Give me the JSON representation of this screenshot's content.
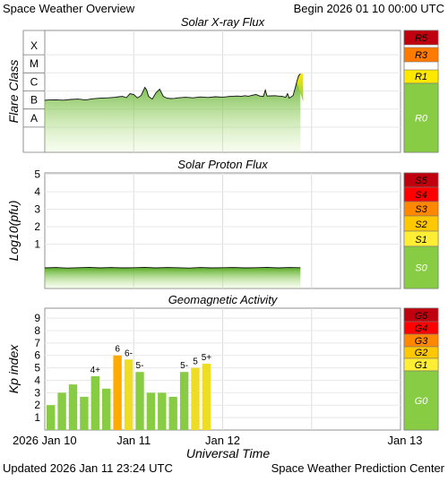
{
  "header": {
    "title": "Space Weather Overview",
    "begin": "Begin 2026 01 10 00:00 UTC"
  },
  "footer": {
    "updated": "Updated 2026 Jan 11 23:24 UTC",
    "source": "Space Weather Prediction Center"
  },
  "chart_data": [
    {
      "type": "area",
      "title": "Solar X-ray Flux",
      "ylabel": "Flare Class",
      "y_ticks": [
        "A",
        "B",
        "C",
        "M",
        "X"
      ],
      "ylim": [
        0,
        5
      ],
      "x_range_hours": [
        0,
        96
      ],
      "x": [
        0,
        1,
        3,
        5,
        7,
        9,
        11,
        13,
        15,
        17,
        19,
        20,
        21,
        22,
        23,
        24,
        25,
        26,
        27,
        27.5,
        28,
        29,
        30,
        31,
        32,
        33,
        34,
        35,
        36,
        38,
        40,
        42,
        44,
        46,
        48,
        50,
        52,
        53,
        54,
        55,
        56,
        57,
        58,
        59,
        59.5,
        60,
        61,
        62,
        63,
        64,
        64.5,
        65,
        65.5,
        66,
        67,
        67.5,
        68,
        68.5,
        69
      ],
      "values": [
        1.98,
        2.0,
        2.01,
        1.99,
        2.03,
        2.05,
        2.0,
        2.07,
        2.1,
        2.12,
        2.15,
        2.18,
        2.2,
        2.13,
        2.35,
        2.3,
        2.12,
        2.25,
        2.7,
        2.55,
        2.2,
        2.05,
        2.4,
        2.6,
        2.2,
        2.1,
        2.08,
        2.09,
        2.12,
        2.15,
        2.12,
        2.17,
        2.14,
        2.18,
        2.16,
        2.2,
        2.22,
        2.2,
        2.24,
        2.21,
        2.26,
        2.3,
        2.22,
        2.2,
        2.55,
        2.22,
        2.23,
        2.24,
        2.22,
        2.21,
        2.18,
        2.15,
        2.35,
        2.1,
        2.25,
        2.6,
        3.0,
        3.35,
        3.45
      ],
      "scale": [
        {
          "label": "R5",
          "color": "#c0000f"
        },
        {
          "label": "R3",
          "color": "#ff7b00"
        },
        {
          "label": "R1",
          "color": "#ffe800"
        },
        {
          "label": "R0",
          "color": "#88cc44"
        }
      ]
    },
    {
      "type": "area",
      "title": "Solar Proton Flux",
      "ylabel": "Log10(pfu)",
      "y_ticks": [
        "1",
        "2",
        "3",
        "4",
        "5"
      ],
      "ylim": [
        -1.1,
        5.6
      ],
      "x_range_hours": [
        0,
        96
      ],
      "x": [
        0,
        3,
        6,
        9,
        12,
        15,
        18,
        21,
        24,
        27,
        30,
        33,
        36,
        39,
        42,
        45,
        48,
        51,
        54,
        57,
        60,
        63,
        66,
        69
      ],
      "values": [
        -0.36,
        -0.34,
        -0.37,
        -0.35,
        -0.33,
        -0.36,
        -0.34,
        -0.36,
        -0.35,
        -0.33,
        -0.36,
        -0.34,
        -0.35,
        -0.37,
        -0.34,
        -0.36,
        -0.35,
        -0.34,
        -0.36,
        -0.35,
        -0.33,
        -0.36,
        -0.34,
        -0.35
      ],
      "scale": [
        {
          "label": "S5",
          "color": "#c0000f"
        },
        {
          "label": "S4",
          "color": "#ff0000"
        },
        {
          "label": "S3",
          "color": "#ff8800"
        },
        {
          "label": "S2",
          "color": "#ffc800"
        },
        {
          "label": "S1",
          "color": "#ffee33"
        },
        {
          "label": "S0",
          "color": "#88cc44"
        }
      ]
    },
    {
      "type": "bar",
      "title": "Geomagnetic Activity",
      "ylabel": "Kp index",
      "y_ticks": [
        "1",
        "2",
        "3",
        "4",
        "5",
        "6",
        "7",
        "8",
        "9"
      ],
      "ylim": [
        0,
        9.8
      ],
      "bar_width_hours": 3,
      "x_start_hours": [
        0,
        3,
        6,
        9,
        12,
        15,
        18,
        21,
        24,
        27,
        30,
        33,
        36,
        39,
        42,
        45
      ],
      "values": [
        2,
        3,
        3.67,
        2.67,
        4.33,
        3.33,
        6,
        5.67,
        4.67,
        3,
        3,
        2.67,
        4.67,
        5,
        5.33,
        0
      ],
      "bar_labels": [
        "",
        "",
        "",
        "",
        "4+",
        "",
        "6",
        "6-",
        "5-",
        "",
        "",
        "",
        "5-",
        "5",
        "5+",
        ""
      ],
      "colors": [
        "#88cc44",
        "#88cc44",
        "#88cc44",
        "#88cc44",
        "#88cc44",
        "#88cc44",
        "#ffaa00",
        "#eedd22",
        "#88cc44",
        "#88cc44",
        "#88cc44",
        "#88cc44",
        "#88cc44",
        "#eedd22",
        "#eedd22",
        "#88cc44"
      ],
      "scale": [
        {
          "label": "G5",
          "color": "#c0000f"
        },
        {
          "label": "G4",
          "color": "#ff0000"
        },
        {
          "label": "G3",
          "color": "#ff8800"
        },
        {
          "label": "G2",
          "color": "#ffc800"
        },
        {
          "label": "G1",
          "color": "#ffee33"
        },
        {
          "label": "G0",
          "color": "#88cc44"
        }
      ]
    }
  ],
  "x_axis": {
    "label": "Universal Time",
    "tick_hours": [
      0,
      24,
      48,
      72
    ],
    "tick_labels": [
      "2026 Jan 10",
      "Jan 11",
      "Jan 12",
      "Jan 13"
    ]
  }
}
